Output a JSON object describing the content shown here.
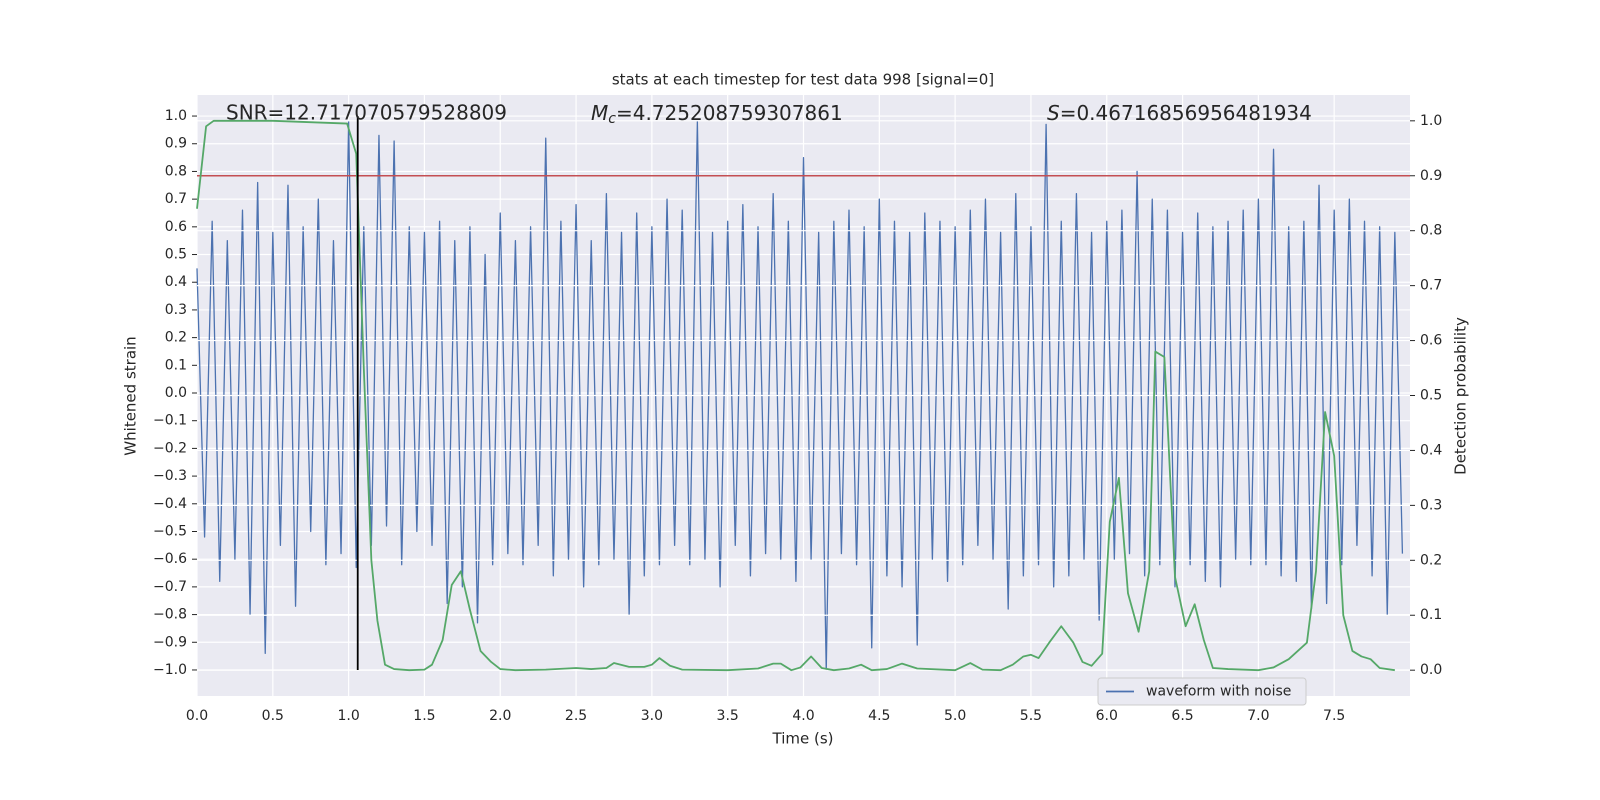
{
  "chart_data": {
    "type": "line",
    "title": "stats at each timestep for test data 998 [signal=0]",
    "xlabel": "Time (s)",
    "ylabel": "Whitened strain",
    "y2label": "Detection probability",
    "annotations": [
      {
        "text": "SNR=12.717070579528809"
      },
      {
        "symbol": "M",
        "subscript": "c",
        "text": "=4.725208759307861"
      },
      {
        "symbol": "S",
        "text": "=0.46716856956481934"
      }
    ],
    "xlim": [
      0,
      8
    ],
    "ylim": [
      -1.094,
      1.076
    ],
    "y2lim": [
      -0.047,
      1.047
    ],
    "xticks": [
      {
        "value": 0,
        "label": "0.0"
      },
      0.5,
      {
        "value": 1,
        "label": "1.0"
      },
      1.5,
      {
        "value": 2,
        "label": "2.0"
      },
      2.5,
      {
        "value": 3,
        "label": "3.0"
      },
      3.5,
      {
        "value": 4,
        "label": "4.0"
      },
      4.5,
      {
        "value": 5,
        "label": "5.0"
      },
      5.5,
      {
        "value": 6,
        "label": "6.0"
      },
      6.5,
      {
        "value": 7,
        "label": "7.0"
      },
      7.5
    ],
    "yticks": [
      {
        "value": -1,
        "label": "−1.0"
      },
      {
        "value": -0.9,
        "label": "−0.9"
      },
      {
        "value": -0.8,
        "label": "−0.8"
      },
      {
        "value": -0.7,
        "label": "−0.7"
      },
      {
        "value": -0.6,
        "label": "−0.6"
      },
      {
        "value": -0.5,
        "label": "−0.5"
      },
      {
        "value": -0.4,
        "label": "−0.4"
      },
      {
        "value": -0.3,
        "label": "−0.3"
      },
      {
        "value": -0.2,
        "label": "−0.2"
      },
      {
        "value": -0.1,
        "label": "−0.1"
      },
      {
        "value": 0,
        "label": "0.0"
      },
      0.1,
      0.2,
      0.3,
      0.4,
      0.5,
      0.6,
      0.7,
      0.8,
      0.9,
      {
        "value": 1,
        "label": "1.0"
      }
    ],
    "y2ticks": [
      {
        "value": 0,
        "label": "0.0"
      },
      0.1,
      0.2,
      0.3,
      0.4,
      0.5,
      0.6,
      0.7,
      0.8,
      0.9,
      {
        "value": 1,
        "label": "1.0"
      }
    ],
    "grid": true,
    "legend": "lower right",
    "x": [
      0,
      0.05,
      0.1,
      0.15,
      0.2,
      0.25,
      0.3,
      0.35,
      0.4,
      0.45,
      0.5,
      0.55,
      0.6,
      0.65,
      0.7,
      0.75,
      0.8,
      0.85,
      0.9,
      0.95,
      1,
      1.05,
      1.1,
      1.15,
      1.2,
      1.25,
      1.3,
      1.35,
      1.4,
      1.45,
      1.5,
      1.55,
      1.6,
      1.65,
      1.7,
      1.75,
      1.8,
      1.85,
      1.9,
      1.95,
      2,
      2.05,
      2.1,
      2.15,
      2.2,
      2.25,
      2.3,
      2.35,
      2.4,
      2.45,
      2.5,
      2.55,
      2.6,
      2.65,
      2.7,
      2.75,
      2.8,
      2.85,
      2.9,
      2.95,
      3,
      3.05,
      3.1,
      3.15,
      3.2,
      3.25,
      3.3,
      3.35,
      3.4,
      3.45,
      3.5,
      3.55,
      3.6,
      3.65,
      3.7,
      3.75,
      3.8,
      3.85,
      3.9,
      3.95,
      4,
      4.05,
      4.1,
      4.15,
      4.2,
      4.25,
      4.3,
      4.35,
      4.4,
      4.45,
      4.5,
      4.55,
      4.6,
      4.65,
      4.7,
      4.75,
      4.8,
      4.85,
      4.9,
      4.95,
      5,
      5.05,
      5.1,
      5.15,
      5.2,
      5.25,
      5.3,
      5.35,
      5.4,
      5.45,
      5.5,
      5.55,
      5.6,
      5.65,
      5.7,
      5.75,
      5.8,
      5.85,
      5.9,
      5.95,
      6,
      6.05,
      6.1,
      6.15,
      6.2,
      6.25,
      6.3,
      6.35,
      6.4,
      6.45,
      6.5,
      6.55,
      6.6,
      6.65,
      6.7,
      6.75,
      6.8,
      6.85,
      6.9,
      6.95,
      7,
      7.05,
      7.1,
      7.15,
      7.2,
      7.25,
      7.3,
      7.35,
      7.4,
      7.45,
      7.5,
      7.55,
      7.6,
      7.65,
      7.7,
      7.75,
      7.8,
      7.85,
      7.9,
      7.95
    ],
    "series": [
      {
        "name": "waveform with noise",
        "color": "#4c72b0",
        "values": [
          0.45,
          -0.52,
          0.62,
          -0.68,
          0.55,
          -0.6,
          0.66,
          -0.8,
          0.76,
          -0.94,
          0.58,
          -0.55,
          0.75,
          -0.77,
          0.6,
          -0.5,
          0.7,
          -0.62,
          0.55,
          -0.58,
          0.98,
          -0.63,
          0.6,
          -0.55,
          0.93,
          -0.48,
          0.91,
          -0.62,
          0.6,
          -0.5,
          0.58,
          -0.55,
          0.62,
          -0.76,
          0.55,
          -0.7,
          0.6,
          -0.83,
          0.5,
          -0.62,
          0.65,
          -0.58,
          0.55,
          -0.62,
          0.6,
          -0.55,
          0.92,
          -0.66,
          0.62,
          -0.6,
          0.68,
          -0.7,
          0.55,
          -0.62,
          0.72,
          -0.6,
          0.58,
          -0.8,
          0.65,
          -0.66,
          0.6,
          -0.62,
          0.7,
          -0.55,
          0.66,
          -0.62,
          0.98,
          -0.6,
          0.58,
          -0.7,
          0.62,
          -0.55,
          0.68,
          -0.66,
          0.6,
          -0.58,
          0.72,
          -0.6,
          0.62,
          -0.68,
          0.85,
          -0.6,
          0.58,
          -1.0,
          0.62,
          -0.58,
          0.66,
          -0.62,
          0.6,
          -0.92,
          0.7,
          -0.66,
          0.62,
          -0.7,
          0.58,
          -0.91,
          0.65,
          -0.6,
          0.62,
          -0.68,
          0.6,
          -0.62,
          0.66,
          -0.55,
          0.7,
          -0.6,
          0.58,
          -0.78,
          0.72,
          -0.66,
          0.6,
          -0.62,
          0.97,
          -0.7,
          0.62,
          -0.66,
          0.72,
          -0.6,
          0.58,
          -0.82,
          0.62,
          -0.6,
          0.66,
          -0.58,
          0.8,
          -0.66,
          0.7,
          -0.62,
          0.66,
          -0.7,
          0.58,
          -0.62,
          0.65,
          -0.68,
          0.6,
          -0.7,
          0.62,
          -0.6,
          0.66,
          -0.62,
          0.7,
          -0.62,
          0.88,
          -0.66,
          0.6,
          -0.68,
          0.62,
          -0.78,
          0.75,
          -0.76,
          0.66,
          -0.62,
          0.7,
          -0.55,
          0.62,
          -0.66,
          0.6,
          -0.8,
          0.58,
          -0.58
        ]
      },
      {
        "color": "#55a868",
        "axis": "y2",
        "x": [
          0,
          0.06,
          0.11,
          0.5,
          0.99,
          1.05,
          1.1,
          1.15,
          1.19,
          1.24,
          1.3,
          1.4,
          1.5,
          1.55,
          1.62,
          1.68,
          1.74,
          1.8,
          1.87,
          1.94,
          2,
          2.1,
          2.3,
          2.5,
          2.6,
          2.7,
          2.75,
          2.85,
          2.95,
          3,
          3.05,
          3.12,
          3.2,
          3.5,
          3.7,
          3.8,
          3.85,
          3.92,
          3.98,
          4.05,
          4.12,
          4.2,
          4.3,
          4.38,
          4.45,
          4.55,
          4.65,
          4.75,
          5,
          5.1,
          5.18,
          5.3,
          5.38,
          5.45,
          5.5,
          5.55,
          5.62,
          5.7,
          5.78,
          5.84,
          5.9,
          5.97,
          6.02,
          6.08,
          6.14,
          6.21,
          6.28,
          6.32,
          6.38,
          6.45,
          6.52,
          6.58,
          6.64,
          6.7,
          6.8,
          7,
          7.1,
          7.2,
          7.26,
          7.32,
          7.38,
          7.44,
          7.5,
          7.56,
          7.62,
          7.68,
          7.74,
          7.8,
          7.9
        ],
        "values": [
          0.84,
          0.99,
          1.0,
          1.0,
          0.995,
          0.94,
          0.55,
          0.2,
          0.09,
          0.01,
          0.002,
          0.0,
          0.001,
          0.01,
          0.055,
          0.155,
          0.18,
          0.11,
          0.035,
          0.015,
          0.002,
          0.0,
          0.001,
          0.004,
          0.002,
          0.004,
          0.013,
          0.006,
          0.006,
          0.01,
          0.022,
          0.008,
          0.001,
          0.0,
          0.003,
          0.012,
          0.012,
          0.0,
          0.005,
          0.025,
          0.004,
          0.0,
          0.003,
          0.01,
          0.0,
          0.002,
          0.012,
          0.003,
          0.0,
          0.013,
          0.001,
          0.0,
          0.01,
          0.025,
          0.028,
          0.022,
          0.05,
          0.08,
          0.05,
          0.015,
          0.008,
          0.03,
          0.27,
          0.35,
          0.14,
          0.07,
          0.18,
          0.58,
          0.57,
          0.17,
          0.08,
          0.12,
          0.055,
          0.004,
          0.002,
          0.0,
          0.005,
          0.02,
          0.035,
          0.05,
          0.18,
          0.47,
          0.39,
          0.1,
          0.035,
          0.025,
          0.02,
          0.004,
          0.0
        ]
      }
    ],
    "threshold": {
      "value": 0.9,
      "axis": "y2",
      "color": "#c44e52"
    },
    "marker": {
      "x": 1.06,
      "color": "#000000"
    }
  }
}
